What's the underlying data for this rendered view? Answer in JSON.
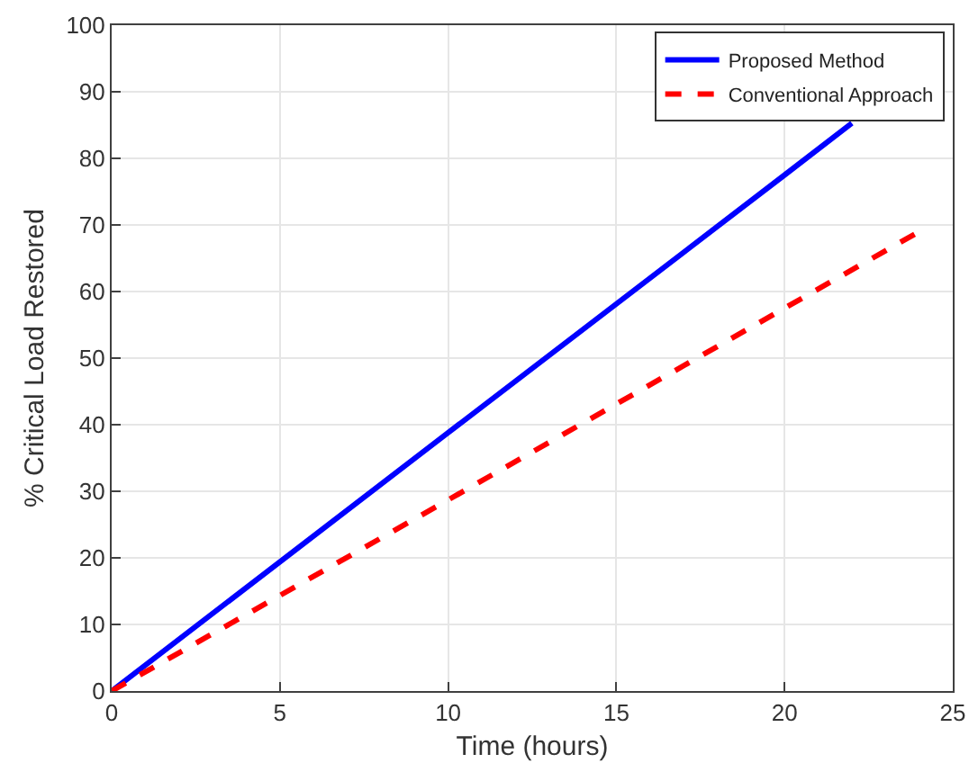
{
  "chart_data": {
    "type": "line",
    "xlabel": "Time (hours)",
    "ylabel": "% Critical Load Restored",
    "series": [
      {
        "name": "Proposed Method",
        "color": "#0000ff",
        "line_style": "solid",
        "x": [
          0,
          10,
          20,
          22
        ],
        "values": [
          0,
          38.8,
          77.5,
          85.3
        ]
      },
      {
        "name": "Conventional Approach",
        "color": "#ff0000",
        "line_style": "dashed",
        "x": [
          0,
          10,
          20,
          24
        ],
        "values": [
          0,
          28.7,
          57.5,
          69
        ]
      }
    ],
    "xlim": [
      0,
      25
    ],
    "xticks": [
      0,
      5,
      10,
      15,
      20,
      25
    ],
    "ylim": [
      0,
      100
    ],
    "yticks": [
      0,
      10,
      20,
      30,
      40,
      50,
      60,
      70,
      80,
      90,
      100
    ],
    "grid": true,
    "legend": "top right",
    "marker": "none"
  }
}
